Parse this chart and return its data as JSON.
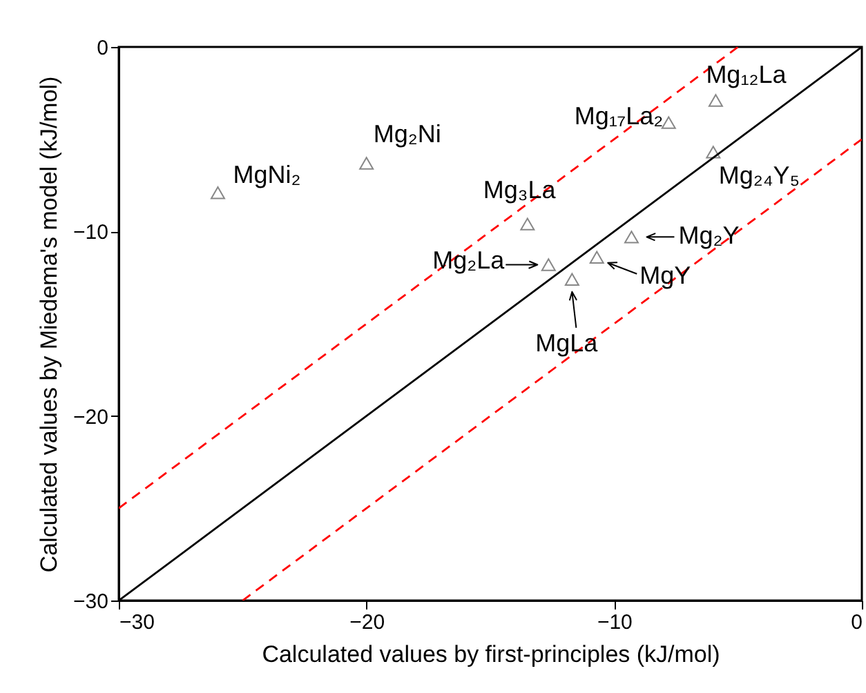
{
  "chart_data": {
    "type": "scatter",
    "xlabel": "Calculated values by first-principles (kJ/mol)",
    "ylabel": "Calculated values by Miedema's model (kJ/mol)",
    "xlim": [
      -30,
      0
    ],
    "ylim": [
      -30,
      0
    ],
    "xticks": [
      -30,
      -20,
      -10,
      0
    ],
    "yticks": [
      -30,
      -20,
      -10,
      0
    ],
    "grid": false,
    "series": [
      {
        "marker": "triangle",
        "color": "#555555",
        "x": [
          -26.0,
          -20.0,
          -13.5,
          -7.8,
          -5.9,
          -6.0,
          -9.3,
          -10.7,
          -12.65,
          -11.7
        ],
        "values": [
          -7.9,
          -6.3,
          -9.6,
          -4.1,
          -2.9,
          -5.7,
          -10.3,
          -11.4,
          -11.8,
          -12.6
        ]
      },
      {
        "type": "line",
        "color": "#000000",
        "line_style": "solid",
        "x": [
          -30,
          0
        ],
        "values": [
          -30,
          0
        ]
      },
      {
        "type": "line",
        "color": "#ff0000",
        "line_style": "dashed",
        "x": [
          -30,
          -5
        ],
        "values": [
          -25,
          0
        ]
      },
      {
        "type": "line",
        "color": "#ff0000",
        "line_style": "dashed",
        "x": [
          -25,
          0
        ],
        "values": [
          -30,
          -5
        ]
      }
    ],
    "annotations": [
      {
        "text": "MgNi₂",
        "x": -26.0,
        "y": -7.9
      },
      {
        "text": "Mg₂Ni",
        "x": -20.0,
        "y": -6.3
      },
      {
        "text": "Mg₃La",
        "x": -13.5,
        "y": -9.6
      },
      {
        "text": "Mg₁₇La₂",
        "x": -7.8,
        "y": -4.1
      },
      {
        "text": "Mg₁₂La",
        "x": -5.9,
        "y": -2.9
      },
      {
        "text": "Mg₂₄Y₅",
        "x": -6.0,
        "y": -5.7
      },
      {
        "text": "Mg₂Y",
        "x": -9.3,
        "y": -10.3
      },
      {
        "text": "MgY",
        "x": -10.7,
        "y": -11.4
      },
      {
        "text": "Mg₂La",
        "x": -12.65,
        "y": -11.8
      },
      {
        "text": "MgLa",
        "x": -11.7,
        "y": -12.6
      }
    ]
  }
}
